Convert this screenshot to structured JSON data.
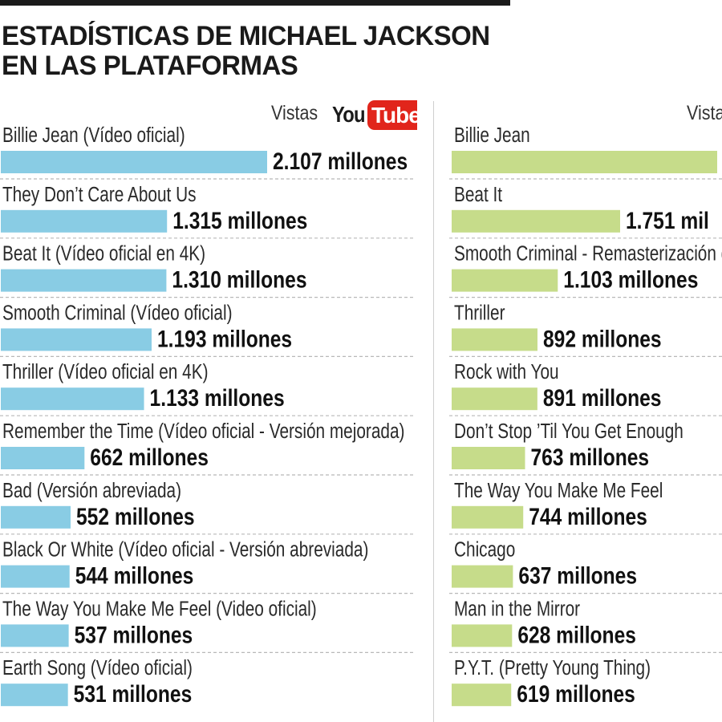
{
  "header": {
    "title_line1": "ESTADÍSTICAS DE MICHAEL JACKSON",
    "title_line2": "EN LAS PLATAFORMAS"
  },
  "colors": {
    "youtube_bar": "#89cce4",
    "second_bar": "#c6dc8a",
    "youtube_red": "#e1251b",
    "divider": "#c4c4c4"
  },
  "chart_data": [
    {
      "type": "bar",
      "orientation": "horizontal",
      "platform_logo": "youtube-logo",
      "logo_text": [
        "You",
        "Tube"
      ],
      "measure_label": "Vistas",
      "value_suffix": " millones",
      "categories": [
        "Billie Jean (Vídeo oficial)",
        "They Don’t Care About Us",
        "Beat It (Vídeo oficial en 4K)",
        "Smooth Criminal (Vídeo oficial)",
        "Thriller (Vídeo oficial en 4K)",
        "Remember the Time (Vídeo oficial - Versión mejorada)",
        "Bad (Versión abreviada)",
        "Black Or White (Vídeo oficial - Versión abreviada)",
        "The Way You Make Me Feel (Video oficial)",
        "Earth Song (Vídeo oficial)"
      ],
      "values": [
        2107,
        1315,
        1310,
        1193,
        1133,
        662,
        552,
        544,
        537,
        531
      ],
      "value_labels": [
        "2.107",
        "1.315",
        "1.310",
        "1.193",
        "1.133",
        "662",
        "552",
        "544",
        "537",
        "531"
      ]
    },
    {
      "type": "bar",
      "orientation": "horizontal",
      "measure_label": "Vista",
      "value_suffix": " millones",
      "categories": [
        "Billie Jean",
        "Beat It",
        "Smooth Criminal - Remasterización de",
        "Thriller",
        "Rock with You",
        "Don’t Stop ’Til You Get Enough",
        "The Way You Make Me Feel",
        "Chicago",
        "Man in the Mirror",
        "P.Y.T. (Pretty Young Thing)"
      ],
      "values": [
        null,
        1751,
        1103,
        892,
        891,
        763,
        744,
        637,
        628,
        619
      ],
      "value_labels": [
        "",
        "1.751 mil",
        "1.103",
        "892",
        "891",
        "763",
        "744",
        "637",
        "628",
        "619"
      ]
    }
  ]
}
